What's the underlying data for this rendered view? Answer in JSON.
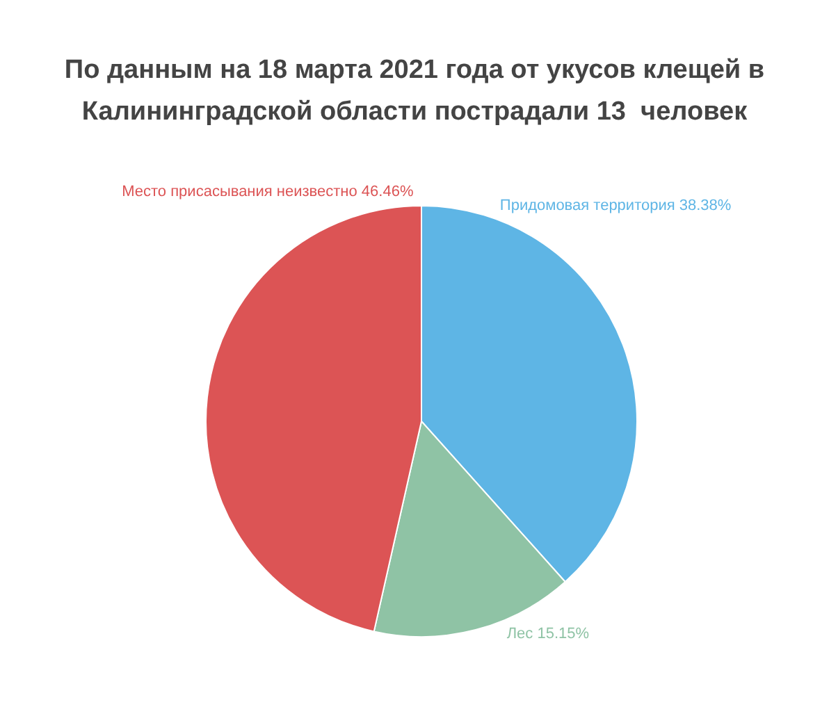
{
  "chart_data": {
    "type": "pie",
    "title": "По данным на 18 марта 2021 года от укусов клещей в Калининградской области пострадали 13  человек",
    "categories": [
      "Придомовая территория",
      "Лес",
      "Место присасывания неизвестно"
    ],
    "values": [
      38.38,
      15.15,
      46.46
    ],
    "value_labels": [
      "38.38%",
      "15.15%",
      "46.46%"
    ],
    "colors": [
      "#5eb5e5",
      "#8fc3a5",
      "#dc5455"
    ],
    "legend": false
  }
}
